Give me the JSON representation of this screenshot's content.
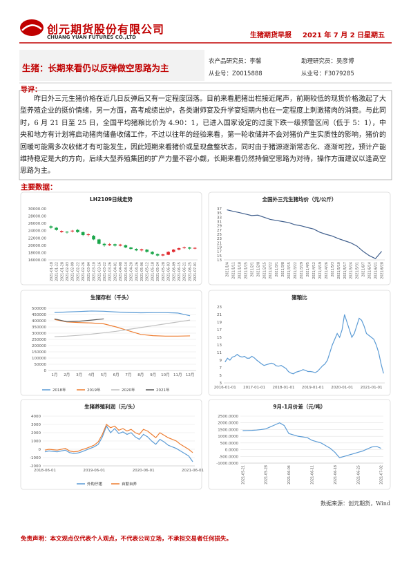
{
  "header": {
    "company": "创元期货股份有限公司",
    "company_en": "CHUANG YUAN FUTURES CO.,LTD",
    "report": "生猪期货早报",
    "date": "2021 年 7 月 2 日",
    "weekday": "星期五"
  },
  "title": "生猪：长期来看仍以反弹做空思路为主",
  "analysts": [
    {
      "role": "农产品研究员：李馨",
      "license": "从业号：Z0015888"
    },
    {
      "role": "助理研究员：吴彦博",
      "license": "从业号：F3079285"
    }
  ],
  "intro": {
    "label": "导评：",
    "text": "昨日外三元生猪价格在近几日反弹后又有一定程度回落。目前来看肥猪出栏接近尾声，前期较低的现货价格激起了大型养殖企业的挺价情绪，另一方面，高考成绩出炉，各类谢师宴及升学宴短期内也在一定程度上刺激猪肉的消费。与此同时，6 月 21 日至 25 日，全国平均猪粮比价为 4.90：1，已进入国家设定的过度下跌一级预警区间（低于 5：1），中央和地方有计划将启动猪肉储备收储工作，不过以往年的经验来看，第一轮收储并不会对猪价产生实质性的影响，猪价的回暖可能需多次收储才有可能发生，因此短期来看猪价或呈现盘整状态，同时由于猪源逐渐常态化、逐渐可控，预计产能维持稳定是大的方向，后续大型养殖集团的扩产力量不容小觑，长期来看仍然持偏空思路为对待，操作方面建议以逢高空思路为主。"
  },
  "section": "主要数据：",
  "source": "数据来源：创元期货，Wind",
  "disclaimer": "免责声明：本文观点仅代表个人观点，不代表公司立场，不承担交易者任何损失。",
  "chart_data": [
    {
      "type": "candlestick",
      "title": "LH2109日线走势",
      "categories": [
        "2021-01-18",
        "2021-01-22",
        "2021-01-28",
        "2021-02-03",
        "2021-02-09",
        "2021-02-22",
        "2021-02-26",
        "2021-03-04",
        "2021-03-10",
        "2021-03-16",
        "2021-03-22",
        "2021-03-26",
        "2021-04-01",
        "2021-04-08",
        "2021-04-14",
        "2021-04-20",
        "2021-04-26",
        "2021-05-06",
        "2021-05-12",
        "2021-05-18",
        "2021-05-24",
        "2021-05-28",
        "2021-06-03",
        "2021-06-09",
        "2021-06-15",
        "2021-06-21",
        "2021-06-25",
        "2021-07-01"
      ],
      "open": [
        25200,
        24800,
        23600,
        23700,
        23800,
        24200,
        23600,
        22800,
        22600,
        21600,
        20400,
        20000,
        20300,
        19900,
        20000,
        19400,
        19000,
        18600,
        18800,
        18200,
        17600,
        17200,
        17400,
        18200,
        18800,
        19200,
        19400,
        19100
      ],
      "close": [
        24800,
        24200,
        23900,
        23500,
        24000,
        23600,
        22800,
        23000,
        21600,
        20400,
        20000,
        20300,
        19900,
        20200,
        19400,
        19000,
        18600,
        18900,
        18200,
        17600,
        17200,
        17500,
        18200,
        18800,
        19200,
        19400,
        19100,
        19300
      ],
      "high": [
        25500,
        25000,
        24100,
        23900,
        24200,
        24500,
        23800,
        23300,
        22800,
        21800,
        20700,
        20600,
        20500,
        20400,
        20200,
        19600,
        19200,
        19100,
        19000,
        18400,
        17800,
        17700,
        18400,
        19000,
        19400,
        19700,
        19600,
        19500
      ],
      "low": [
        24500,
        24000,
        23400,
        23200,
        23500,
        23400,
        22500,
        22400,
        21400,
        20200,
        19600,
        19800,
        19600,
        19700,
        19200,
        18800,
        18400,
        18300,
        18000,
        17400,
        16900,
        17000,
        17300,
        18000,
        18600,
        19000,
        18800,
        18900
      ],
      "up_color": "#e0262b",
      "down_color": "#1aa64a",
      "ylim": [
        16000,
        30000
      ],
      "yticks": [
        {
          "value": 16000,
          "label": "16000.00"
        },
        {
          "value": 18000,
          "label": "18000.00"
        },
        {
          "value": 20000,
          "label": "20000.00"
        },
        {
          "value": 22000,
          "label": "22000.00"
        },
        {
          "value": 24000,
          "label": "24000.00"
        },
        {
          "value": 26000,
          "label": "26000.00"
        },
        {
          "value": 28000,
          "label": "28000.00"
        },
        {
          "value": 30000,
          "label": "30000.00"
        }
      ],
      "grid": false
    },
    {
      "type": "line",
      "title": "全国外三元生猪均价（元/公斤）",
      "categories": [
        "2021/1/4",
        "2021/1/11",
        "2021/1/18",
        "2021/1/25",
        "2021/2/1",
        "2021/2/8",
        "2021/2/15",
        "2021/2/22",
        "2021/3/1",
        "2021/3/8",
        "2021/3/15",
        "2021/3/22",
        "2021/3/29",
        "2021/4/5",
        "2021/4/12",
        "2021/4/19",
        "2021/4/26",
        "2021/5/3",
        "2021/5/10",
        "2021/5/17",
        "2021/5/24",
        "2021/5/31",
        "2021/6/7",
        "2021/6/14",
        "2021/6/21",
        "2021/6/28"
      ],
      "series": [
        {
          "color": "#3f5e8c",
          "values": [
            36.5,
            35.8,
            35.2,
            34.5,
            33.8,
            34,
            33,
            32,
            31.5,
            31,
            30.5,
            29.5,
            29,
            28.2,
            27.5,
            26,
            25,
            24.2,
            23,
            22,
            21,
            19.5,
            17,
            15,
            13.6,
            17
          ]
        }
      ],
      "ylim": [
        13,
        37
      ],
      "yticks": [
        13,
        15,
        17,
        19,
        21,
        23,
        25,
        27,
        29,
        31,
        33,
        35,
        37
      ],
      "grid": false
    },
    {
      "type": "line",
      "title": "生猪存栏（千头）",
      "legend": "bottom",
      "categories": [
        "1月",
        "2月",
        "3月",
        "4月",
        "5月",
        "6月",
        "7月",
        "8月",
        "9月",
        "10月",
        "11月",
        "12月"
      ],
      "series": [
        {
          "name": "2018年",
          "color": "#5b9bd5",
          "values": [
            466000,
            470000,
            474000,
            478000,
            476000,
            470000,
            466000,
            464000,
            465000,
            465000,
            462000,
            440000
          ]
        },
        {
          "name": "2019年",
          "color": "#ed7d31",
          "values": [
            410000,
            390000,
            385000,
            382000,
            375000,
            350000,
            320000,
            290000,
            280000,
            276000,
            276000,
            278000
          ]
        },
        {
          "name": "2020年",
          "color": "#bfbfbf",
          "values": [
            272000,
            276000,
            283000,
            292000,
            303000,
            315000,
            330000,
            345000,
            360000,
            375000,
            390000,
            405000
          ]
        },
        {
          "name": "2021年",
          "color": "#595959",
          "values": [
            415000,
            392000,
            396000,
            405000,
            415000,
            null,
            null,
            null,
            null,
            null,
            null,
            null
          ]
        }
      ],
      "ylim": [
        0,
        500000
      ],
      "yticks": [
        0,
        50000,
        100000,
        150000,
        200000,
        250000,
        300000,
        350000,
        400000,
        450000,
        500000
      ],
      "grid": true
    },
    {
      "type": "line",
      "title": "猪粮比",
      "categories": [
        "2016-01-01",
        null,
        null,
        null,
        null,
        null,
        null,
        null,
        null,
        null,
        null,
        null,
        "2017-01-01",
        null,
        null,
        null,
        null,
        null,
        null,
        null,
        null,
        null,
        null,
        null,
        "2018-01-01",
        null,
        null,
        null,
        null,
        null,
        null,
        null,
        null,
        null,
        null,
        null,
        "2019-01-01",
        null,
        null,
        null,
        null,
        null,
        null,
        null,
        null,
        null,
        null,
        null,
        "2020-01-01",
        null,
        null,
        null,
        null,
        null,
        null,
        null,
        null,
        null,
        null,
        null,
        "2021-01-01",
        null,
        null,
        null,
        null,
        null
      ],
      "series": [
        {
          "color": "#5b9bd5",
          "values": [
            8.5,
            9.5,
            9,
            9.8,
            10,
            10.5,
            10,
            9.8,
            10,
            9.5,
            9.5,
            10,
            9.6,
            9,
            8.5,
            8,
            7.6,
            7.8,
            8,
            8.2,
            8,
            7.5,
            7.4,
            7.6,
            7.2,
            6.8,
            6,
            5.6,
            5.4,
            5.8,
            6,
            6.2,
            6.5,
            6.3,
            6,
            6,
            5.9,
            5.7,
            6.1,
            6.8,
            7.5,
            8,
            9,
            11,
            13,
            14.5,
            16,
            15,
            17,
            21,
            19,
            17,
            15,
            16,
            18,
            20,
            19.5,
            18,
            16,
            15.5,
            15,
            14.5,
            13,
            11,
            8,
            5.5
          ]
        }
      ],
      "ylim": [
        3,
        23
      ],
      "yticks": [
        3,
        5,
        7,
        9,
        11,
        13,
        15,
        17,
        19,
        21,
        23
      ],
      "grid": false
    },
    {
      "type": "line",
      "title": "生猪养殖利润（元/头）",
      "legend": "bottom",
      "categories": [
        "2018-06-01",
        null,
        null,
        null,
        null,
        null,
        null,
        null,
        null,
        null,
        null,
        null,
        "2019-06-01",
        null,
        null,
        null,
        null,
        null,
        null,
        null,
        null,
        null,
        null,
        null,
        "2020-06-01",
        null,
        null,
        null,
        null,
        null,
        null,
        null,
        null,
        null,
        null,
        null,
        "2021-06-01"
      ],
      "series": [
        {
          "name": "外购仔猪",
          "color": "#5b9bd5",
          "values": [
            -300,
            -200,
            -250,
            -300,
            -200,
            -100,
            -400,
            -500,
            -450,
            -300,
            -100,
            100,
            300,
            600,
            1500,
            2800,
            2000,
            2500,
            1900,
            2100,
            1800,
            2000,
            1500,
            1200,
            1800,
            1500,
            1000,
            600,
            1200,
            900,
            500,
            300,
            100,
            -200,
            -500,
            -800,
            -1500
          ]
        },
        {
          "name": "自繁自养",
          "color": "#ed7d31",
          "values": [
            -100,
            0,
            -50,
            -100,
            0,
            100,
            -200,
            -300,
            -250,
            -50,
            100,
            300,
            500,
            900,
            1800,
            3000,
            2600,
            2800,
            2300,
            2500,
            2200,
            2400,
            2000,
            1800,
            2400,
            2200,
            1800,
            1400,
            2000,
            1700,
            1400,
            1200,
            1000,
            600,
            300,
            0,
            -400
          ]
        }
      ],
      "ylim": [
        -2000,
        4000
      ],
      "yticks": [
        -2000,
        -1000,
        0,
        1000,
        2000,
        3000,
        4000
      ],
      "grid": true
    },
    {
      "type": "line",
      "title": "9月-1月价差（元/吨）",
      "categories": [
        "2021-05-21",
        null,
        null,
        null,
        null,
        "2021-05-28",
        null,
        null,
        null,
        null,
        "2021-06-04",
        null,
        null,
        null,
        null,
        "2021-06-11",
        null,
        null,
        null,
        null,
        "2021-06-18",
        null,
        null,
        null,
        null,
        "2021-06-25",
        null,
        null,
        null,
        null,
        "2021-07-02"
      ],
      "series": [
        {
          "color": "#5b9bd5",
          "values": [
            1420,
            1430,
            1440,
            1460,
            1500,
            1550,
            1700,
            1850,
            2000,
            1800,
            1200,
            1100,
            1000,
            950,
            900,
            700,
            600,
            500,
            300,
            100,
            -200,
            -600,
            -500,
            -400,
            -300,
            -200,
            -100,
            50,
            200,
            250,
            100
          ]
        }
      ],
      "ylim": [
        -1000,
        2500
      ],
      "yticks": [
        {
          "value": -1000,
          "label": "-1000.0000"
        },
        {
          "value": -500,
          "label": "-500.0000"
        },
        {
          "value": 0,
          "label": "0.0000"
        },
        {
          "value": 500,
          "label": "500.0000"
        },
        {
          "value": 1000,
          "label": "1000.0000"
        },
        {
          "value": 1500,
          "label": "1500.0000"
        },
        {
          "value": 2000,
          "label": "2000.0000"
        },
        {
          "value": 2500,
          "label": "2500.0000"
        }
      ],
      "grid": true
    }
  ]
}
